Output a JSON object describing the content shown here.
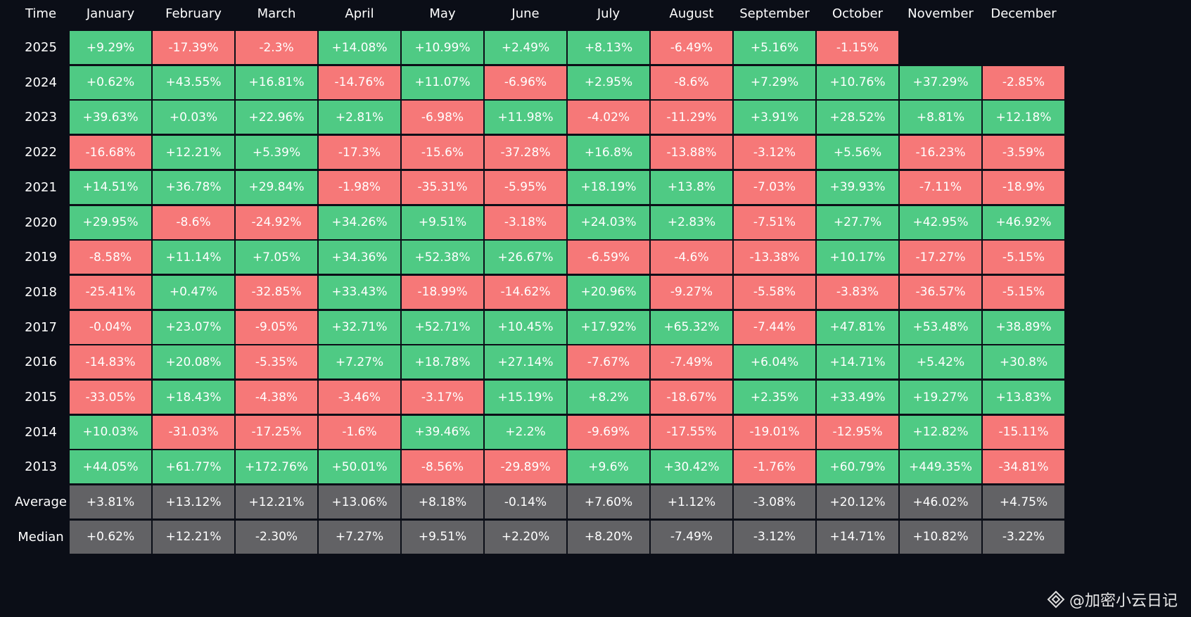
{
  "header": [
    "Time",
    "January",
    "February",
    "March",
    "April",
    "May",
    "June",
    "July",
    "August",
    "September",
    "October",
    "November",
    "December"
  ],
  "rows": [
    {
      "label": "2025",
      "cells": [
        "+9.29%",
        "-17.39%",
        "-2.3%",
        "+14.08%",
        "+10.99%",
        "+2.49%",
        "+8.13%",
        "-6.49%",
        "+5.16%",
        "-1.15%"
      ]
    },
    {
      "label": "2024",
      "cells": [
        "+0.62%",
        "+43.55%",
        "+16.81%",
        "-14.76%",
        "+11.07%",
        "-6.96%",
        "+2.95%",
        "-8.6%",
        "+7.29%",
        "+10.76%",
        "+37.29%",
        "-2.85%"
      ]
    },
    {
      "label": "2023",
      "cells": [
        "+39.63%",
        "+0.03%",
        "+22.96%",
        "+2.81%",
        "-6.98%",
        "+11.98%",
        "-4.02%",
        "-11.29%",
        "+3.91%",
        "+28.52%",
        "+8.81%",
        "+12.18%"
      ]
    },
    {
      "label": "2022",
      "cells": [
        "-16.68%",
        "+12.21%",
        "+5.39%",
        "-17.3%",
        "-15.6%",
        "-37.28%",
        "+16.8%",
        "-13.88%",
        "-3.12%",
        "+5.56%",
        "-16.23%",
        "-3.59%"
      ]
    },
    {
      "label": "2021",
      "cells": [
        "+14.51%",
        "+36.78%",
        "+29.84%",
        "-1.98%",
        "-35.31%",
        "-5.95%",
        "+18.19%",
        "+13.8%",
        "-7.03%",
        "+39.93%",
        "-7.11%",
        "-18.9%"
      ]
    },
    {
      "label": "2020",
      "cells": [
        "+29.95%",
        "-8.6%",
        "-24.92%",
        "+34.26%",
        "+9.51%",
        "-3.18%",
        "+24.03%",
        "+2.83%",
        "-7.51%",
        "+27.7%",
        "+42.95%",
        "+46.92%"
      ]
    },
    {
      "label": "2019",
      "cells": [
        "-8.58%",
        "+11.14%",
        "+7.05%",
        "+34.36%",
        "+52.38%",
        "+26.67%",
        "-6.59%",
        "-4.6%",
        "-13.38%",
        "+10.17%",
        "-17.27%",
        "-5.15%"
      ]
    },
    {
      "label": "2018",
      "cells": [
        "-25.41%",
        "+0.47%",
        "-32.85%",
        "+33.43%",
        "-18.99%",
        "-14.62%",
        "+20.96%",
        "-9.27%",
        "-5.58%",
        "-3.83%",
        "-36.57%",
        "-5.15%"
      ]
    },
    {
      "label": "2017",
      "cells": [
        "-0.04%",
        "+23.07%",
        "-9.05%",
        "+32.71%",
        "+52.71%",
        "+10.45%",
        "+17.92%",
        "+65.32%",
        "-7.44%",
        "+47.81%",
        "+53.48%",
        "+38.89%"
      ]
    },
    {
      "label": "2016",
      "cells": [
        "-14.83%",
        "+20.08%",
        "-5.35%",
        "+7.27%",
        "+18.78%",
        "+27.14%",
        "-7.67%",
        "-7.49%",
        "+6.04%",
        "+14.71%",
        "+5.42%",
        "+30.8%"
      ]
    },
    {
      "label": "2015",
      "cells": [
        "-33.05%",
        "+18.43%",
        "-4.38%",
        "-3.46%",
        "-3.17%",
        "+15.19%",
        "+8.2%",
        "-18.67%",
        "+2.35%",
        "+33.49%",
        "+19.27%",
        "+13.83%"
      ]
    },
    {
      "label": "2014",
      "cells": [
        "+10.03%",
        "-31.03%",
        "-17.25%",
        "-1.6%",
        "+39.46%",
        "+2.2%",
        "-9.69%",
        "-17.55%",
        "-19.01%",
        "-12.95%",
        "+12.82%",
        "-15.11%"
      ]
    },
    {
      "label": "2013",
      "cells": [
        "+44.05%",
        "+61.77%",
        "+172.76%",
        "+50.01%",
        "-8.56%",
        "-29.89%",
        "+9.6%",
        "+30.42%",
        "-1.76%",
        "+60.79%",
        "+449.35%",
        "-34.81%"
      ]
    }
  ],
  "summary_rows": [
    {
      "label": "Average",
      "cells": [
        "+3.81%",
        "+13.12%",
        "+12.21%",
        "+13.06%",
        "+8.18%",
        "-0.14%",
        "+7.60%",
        "+1.12%",
        "-3.08%",
        "+20.12%",
        "+46.02%",
        "+4.75%"
      ]
    },
    {
      "label": "Median",
      "cells": [
        "+0.62%",
        "+12.21%",
        "-2.30%",
        "+7.27%",
        "+9.51%",
        "+2.20%",
        "+8.20%",
        "-7.49%",
        "-3.12%",
        "+14.71%",
        "+10.82%",
        "-3.22%"
      ]
    }
  ],
  "colors": {
    "positive": "#4fca84",
    "negative": "#f67878",
    "summary": "#626265"
  },
  "watermark": "@加密小云日记"
}
